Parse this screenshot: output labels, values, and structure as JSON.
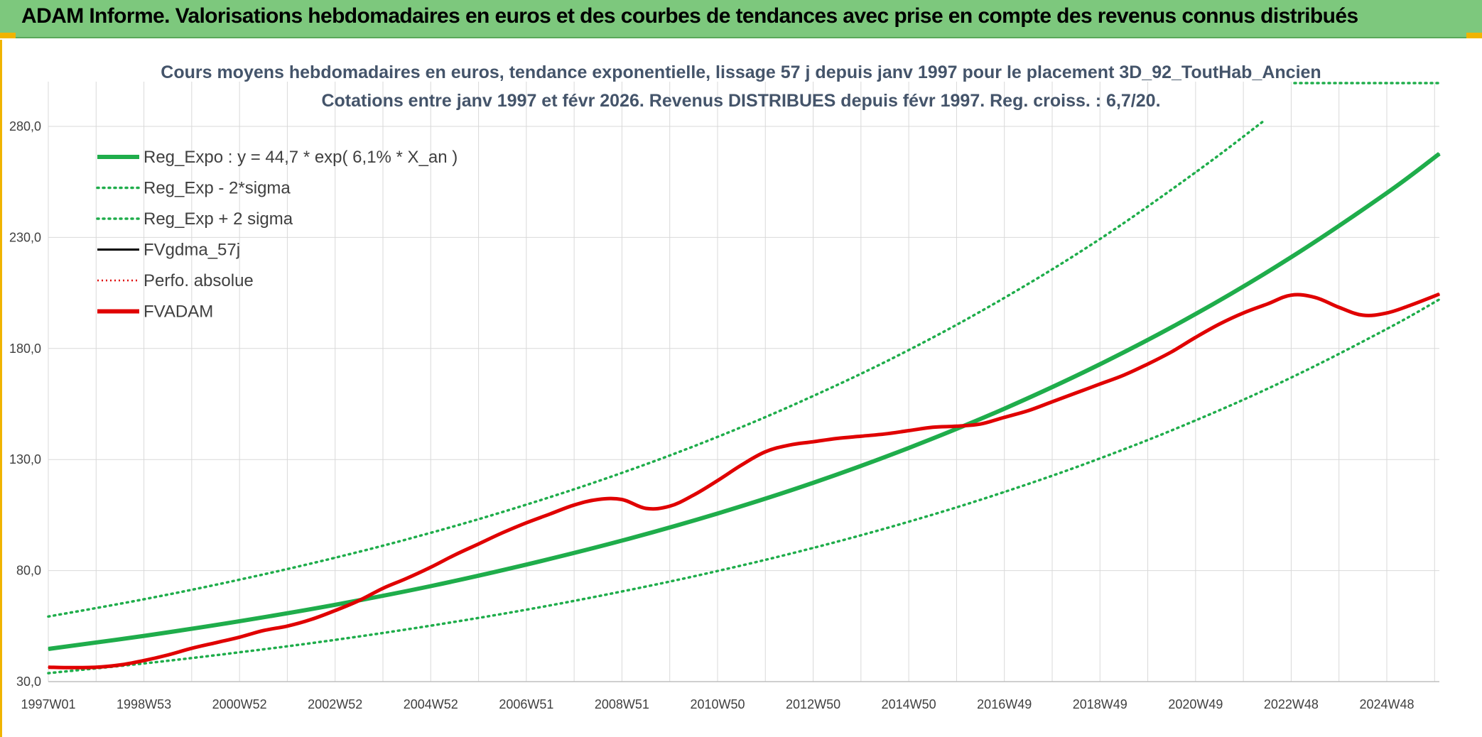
{
  "banner": {
    "title": "ADAM Informe. Valorisations hebdomadaires en euros et des courbes de tendances avec prise en compte des revenus connus distribués"
  },
  "colors": {
    "banner_bg": "#7dc87d",
    "accent_corner": "#f0b400",
    "reg_expo": "#1fad4b",
    "fvgdma": "#000000",
    "perfo": "#e00000",
    "fvadam": "#e00000",
    "title_text": "#44546a",
    "grid": "#d9d9d9"
  },
  "chart_data": {
    "type": "line",
    "title_line1": "Cours moyens hebdomadaires en euros, tendance exponentielle, lissage 57 j depuis janv 1997 pour le placement 3D_92_ToutHab_Ancien",
    "title_line2": "Cotations entre janv 1997 et févr 2026. Revenus DISTRIBUES depuis févr 1997. Reg. croiss. : 6,7/20.",
    "xlabel": "",
    "ylabel": "",
    "ylim": [
      30,
      300
    ],
    "xlim": [
      0,
      29.1
    ],
    "y_ticks": [
      "30,0",
      "80,0",
      "130,0",
      "180,0",
      "230,0",
      "280,0"
    ],
    "y_tick_values": [
      30,
      80,
      130,
      180,
      230,
      280
    ],
    "x_tick_labels": [
      "1997W01",
      "1998W53",
      "2000W52",
      "2002W52",
      "2004W52",
      "2006W51",
      "2008W51",
      "2010W50",
      "2012W50",
      "2014W50",
      "2016W49",
      "2018W49",
      "2020W49",
      "2022W48",
      "2024W48"
    ],
    "x_tick_values": [
      0,
      2,
      4,
      6,
      8,
      10,
      12,
      14,
      16,
      18,
      20,
      22,
      24,
      26,
      28
    ],
    "grid": true,
    "legend_position": "top-left",
    "legend": [
      {
        "label": "Reg_Expo : y = 44,7 * exp( 6,1% *  X_an )",
        "style": "solid-thick",
        "color": "#1fad4b"
      },
      {
        "label": "Reg_Exp - 2*sigma",
        "style": "dotted",
        "color": "#1fad4b"
      },
      {
        "label": "Reg_Exp + 2 sigma",
        "style": "dotted",
        "color": "#1fad4b"
      },
      {
        "label": "FVgdma_57j",
        "style": "solid",
        "color": "#000000"
      },
      {
        "label": "Perfo. absolue",
        "style": "dotted-thin",
        "color": "#e00000"
      },
      {
        "label": "FVADAM",
        "style": "solid-thick",
        "color": "#e00000"
      }
    ],
    "series": [
      {
        "name": "Reg_Expo : y = 44,7 * exp( 6,1% *  X_an )",
        "x": [
          0,
          2,
          4,
          6,
          8,
          10,
          12,
          14,
          16,
          18,
          20,
          22,
          24,
          26,
          28,
          29.1
        ],
        "values": [
          44.7,
          50.6,
          57.2,
          64.6,
          73.0,
          82.7,
          93.5,
          105.7,
          119.5,
          135.2,
          152.9,
          172.9,
          195.5,
          221.1,
          250.0,
          267.7
        ]
      },
      {
        "name": "Reg_Exp - 2*sigma",
        "x": [
          0,
          2,
          4,
          6,
          8,
          10,
          12,
          14,
          16,
          18,
          20,
          22,
          24,
          26,
          28,
          29.1
        ],
        "values": [
          33.8,
          38.2,
          43.2,
          48.8,
          55.2,
          62.4,
          70.6,
          79.8,
          90.2,
          102.0,
          115.4,
          130.5,
          147.6,
          166.9,
          188.8,
          202.1
        ]
      },
      {
        "name": "Reg_Exp + 2 sigma",
        "x": [
          0,
          2,
          4,
          6,
          8,
          10,
          12,
          14,
          16,
          18,
          20,
          22,
          24,
          25.4
        ],
        "values": [
          59.3,
          67.1,
          75.9,
          85.8,
          97.0,
          109.7,
          124.0,
          140.2,
          158.6,
          179.3,
          202.8,
          229.3,
          259.3,
          282.0
        ]
      },
      {
        "name": "FVADAM",
        "x": [
          0,
          0.5,
          1,
          1.5,
          2,
          2.5,
          3,
          3.5,
          4,
          4.5,
          5,
          5.5,
          6,
          6.5,
          7,
          7.5,
          8,
          8.5,
          9,
          9.5,
          10,
          10.5,
          11,
          11.5,
          12,
          12.5,
          13,
          13.5,
          14,
          14.5,
          15,
          15.5,
          16,
          16.5,
          17,
          17.5,
          18,
          18.5,
          19,
          19.5,
          20,
          20.5,
          21,
          21.5,
          22,
          22.5,
          23,
          23.5,
          24,
          24.5,
          25,
          25.5,
          26,
          26.5,
          27,
          27.5,
          28,
          28.5,
          29.1
        ],
        "values": [
          36.5,
          36.3,
          36.5,
          37.5,
          39.5,
          42,
          45,
          47.5,
          50,
          53,
          55,
          58,
          62,
          66.5,
          72,
          76.5,
          81.5,
          87,
          92,
          97,
          101.5,
          105.5,
          109.5,
          112,
          112,
          108,
          109,
          114,
          120.5,
          127.5,
          133.5,
          136.5,
          138,
          139.5,
          140.5,
          141.5,
          143,
          144.5,
          145,
          146,
          149,
          152,
          156,
          160,
          164,
          168,
          173,
          178.5,
          185,
          191,
          196,
          200,
          204,
          203,
          198.5,
          195,
          196,
          199.5,
          204.5
        ]
      }
    ]
  }
}
